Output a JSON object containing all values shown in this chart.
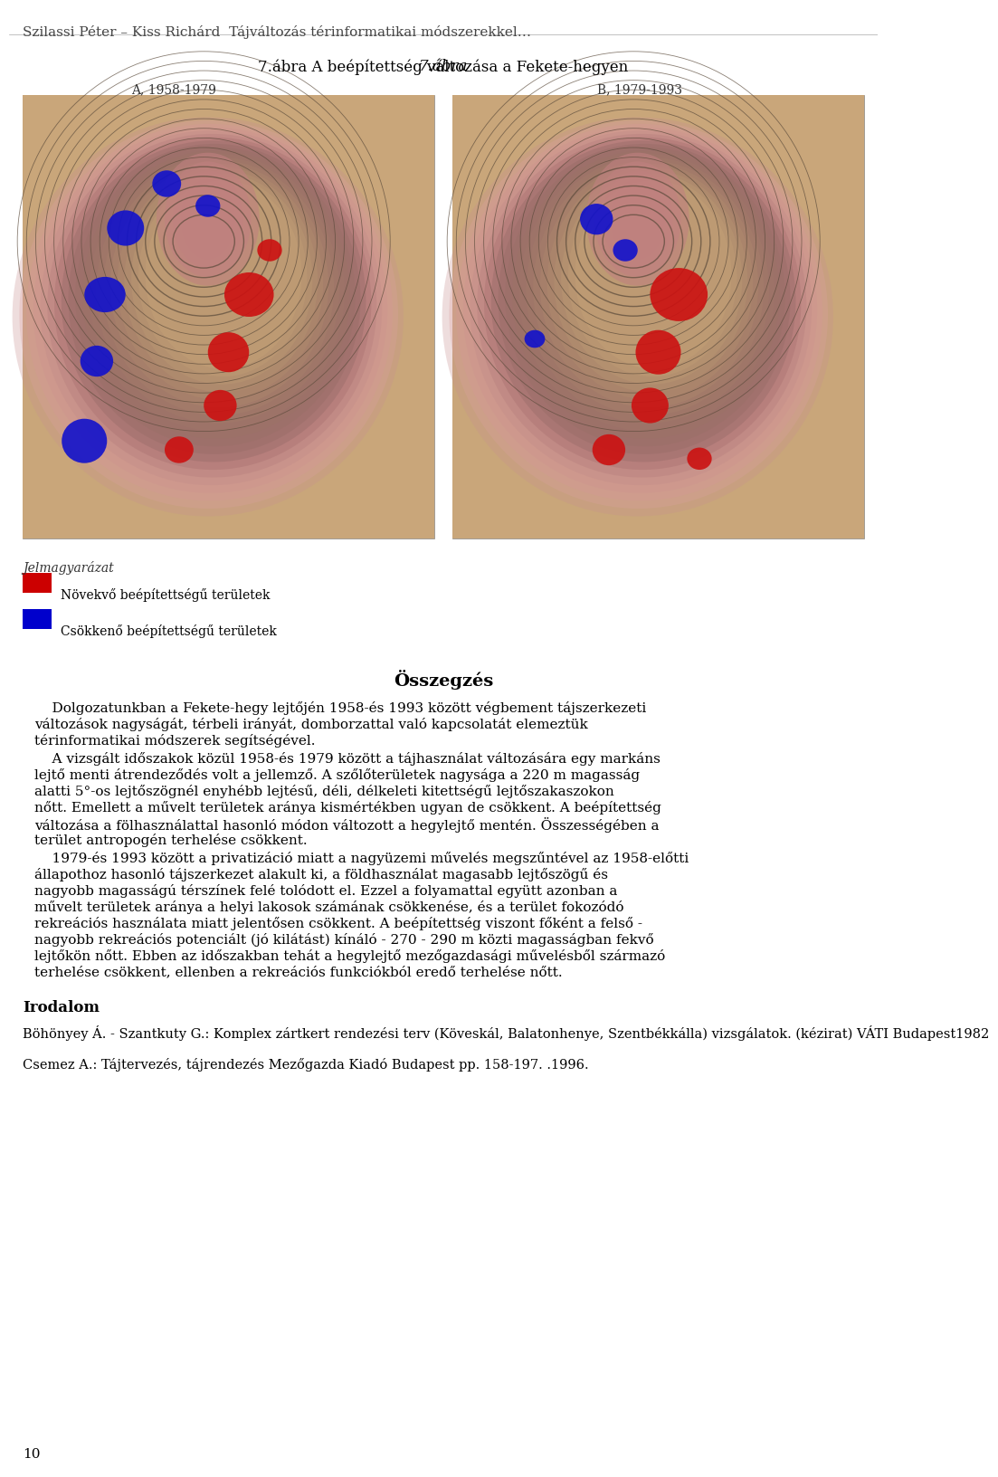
{
  "title_line1": "Szilassi Péter – Kiss Richárd  Tájváltozás térinformatikai módszerekkel…",
  "figure_title_italic": "7.ábra",
  "figure_title_rest": " A beépítettség változása a Fekete-hegyen",
  "figure_subtitle_left": "A, 1958-1979          B, 1979-1993",
  "label_A": "A, 1958-1979",
  "label_B": "B, 1979-1993",
  "legend_title": "Jelmagyarázat",
  "legend_item1": "Növekvő beépítettségű területek",
  "legend_item2": "Csökkenő beépítettségű területek",
  "legend_color1": "#cc0000",
  "legend_color2": "#0000cc",
  "section_title": "Összegzés",
  "paragraph1": "Dolgozatunkban a Fekete-hegy lej tőjén 1958-és 1993 között végbement tájszerkezeti változások nagyságát, térbeli irányát, domborzattal való kapcsolatát elemeztük térinformatikai módszerek segítségével.",
  "paragraph2": "A vizsgált időszakok közül 1958-és 1979 között a tájhasználat változására egy markáns lejtő menti átrendeződés volt a jellemző. A szőlőterületek nagysága a 220 m magasság alatti 5°-os lejtőszögnél enyhébb lejtésű, déli, délkeleti kitettségű lejtőszakaszokon nőtt. Emellett a művelt területek aránya kismértékben ugyan de csökkent. A beépítettség változása a fölhasználattal hasonló módon változott a hegylejtő mentén. Összességében a terület antropogén terhelése csökkent.",
  "paragraph3": "1979-és 1993 között a privatizáció miatt a nagyüzemi művelés megszűntével az 1958-előtti állapothoz hasonló tájszerkezet alakult ki, a földhasználat magasabb lejtőszögű és nagyobb magasságú térszínek felé tolódott el. Ezzel a folyamattal együtt azonban a művelt területek aránya a helyi lakosok számának csökkenése, és a terület fokozódó rekreációs használata miatt jelentősen csökkent. A beépítettség viszont főként a felső - nagyobb rekreációs potenciált (jó kilátást) kínáló - 270 - 290 m közti magasságban fekvő lejtőkön nőtt. Ebben az időszakban tehát a hegylejtő mezőgazdasági művelésből származó terhelése csökkent, ellenben a rekreációs funkciókból eredő terhelése nőtt.",
  "irodalom_title": "Irodalom",
  "ref1": "Böhönyey Á. - Szantkuty G.: Komplex zártkert rendezési terv (Köveskál, Balatonhenye, Szentbékkálla) vizsgálatok. (kézirat) VÁTI Budapest1982",
  "ref2": "Csemez A.: Tájtervezés, tájrendezés Mezőgazda Kiadó Budapest pp. 158-197. .1996.",
  "page_number": "10",
  "bg_color": "#ffffff",
  "text_color": "#000000",
  "map_bg": "#d4b896",
  "map_inner_bg": "#c9a882"
}
